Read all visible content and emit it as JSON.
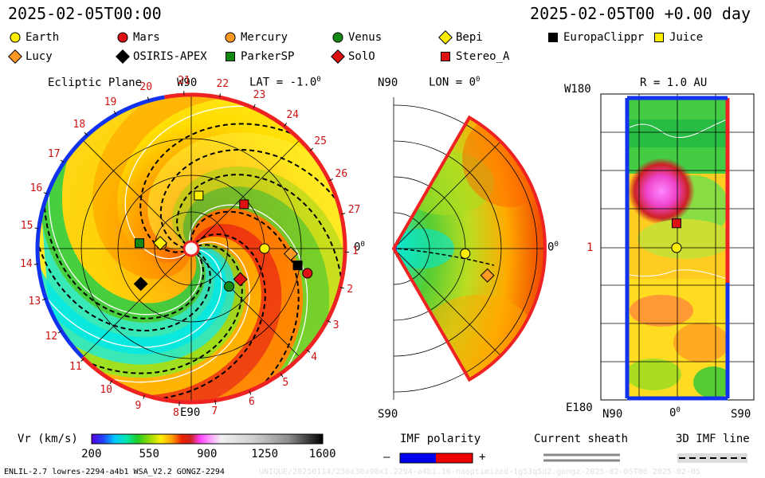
{
  "header": {
    "datetime_left": "2025-02-05T00:00",
    "datetime_right": "2025-02-05T00 +0.00 day"
  },
  "legend": [
    {
      "name": "Earth",
      "shape": "circle",
      "color": "#ffee00"
    },
    {
      "name": "Mars",
      "shape": "circle",
      "color": "#dd1111"
    },
    {
      "name": "Mercury",
      "shape": "circle",
      "color": "#ff9922"
    },
    {
      "name": "Venus",
      "shape": "circle",
      "color": "#118811"
    },
    {
      "name": "Bepi",
      "shape": "diamond",
      "color": "#ffee00"
    },
    {
      "name": "EuropaClippr",
      "shape": "square",
      "color": "#000000"
    },
    {
      "name": "Juice",
      "shape": "square",
      "color": "#ffee00"
    },
    {
      "name": "Lucy",
      "shape": "diamond",
      "color": "#ff9922"
    },
    {
      "name": "OSIRIS-APEX",
      "shape": "diamond",
      "color": "#000000"
    },
    {
      "name": "ParkerSP",
      "shape": "square",
      "color": "#118811"
    },
    {
      "name": "SolO",
      "shape": "diamond",
      "color": "#dd1111"
    },
    {
      "name": "Stereo_A",
      "shape": "square",
      "color": "#dd1111"
    }
  ],
  "ecliptic": {
    "title": "Ecliptic Plane",
    "top_label": "W90",
    "bottom_label": "E90",
    "right_label": "0",
    "lat_label": "LAT = -1.0",
    "carrington_ticks": [
      "1",
      "2",
      "3",
      "4",
      "5",
      "6",
      "7",
      "8",
      "9",
      "10",
      "11",
      "12",
      "13",
      "14",
      "15",
      "16",
      "17",
      "18",
      "19",
      "20",
      "21",
      "22",
      "23",
      "24",
      "25",
      "26",
      "27"
    ]
  },
  "meridional": {
    "top_label": "N90",
    "bottom_label": "S90",
    "lon_label": "LON = 0",
    "right_label": "0"
  },
  "map": {
    "r_label": "R = 1.0 AU",
    "top_left": "W180",
    "mid_left": "1",
    "bottom_left": "E180",
    "x_left": "N90",
    "x_mid": "0",
    "x_right": "S90"
  },
  "colorbar": {
    "label": "Vr (km/s)",
    "ticks": [
      "200",
      "550",
      "900",
      "1250",
      "1600"
    ]
  },
  "imf": {
    "title": "IMF polarity",
    "minus": "–",
    "plus": "+",
    "colors": {
      "neg": "#0000ee",
      "pos": "#ee0000"
    }
  },
  "sheath": {
    "title": "Current sheath"
  },
  "imfline": {
    "title": "3D IMF line"
  },
  "footer": {
    "left": "ENLIL-2.7 lowres-2294-a4b1 WSA_V2.2 GONGZ-2294",
    "right": "UNIQUE/20250114/256x30x90x1.2294-a4b1.16-nooptimized-1g53q5d2.gongz-2025-02-05T00    2025-02-05"
  },
  "chart_data": [
    {
      "type": "heatmap",
      "name": "ecliptic-plane",
      "quantity": "Vr (km/s)",
      "vrange": [
        200,
        1600
      ],
      "objects": [
        {
          "name": "Earth",
          "lon_deg": 0,
          "r_au": 1.0
        },
        {
          "name": "Mercury",
          "lon_deg": 172,
          "r_au": 0.41
        },
        {
          "name": "Venus",
          "lon_deg": -45,
          "r_au": 0.73
        },
        {
          "name": "Mars",
          "lon_deg": -12,
          "r_au": 1.62
        },
        {
          "name": "Bepi",
          "lon_deg": 170,
          "r_au": 0.43
        },
        {
          "name": "EuropaClippr",
          "lon_deg": -9,
          "r_au": 1.47
        },
        {
          "name": "Juice",
          "lon_deg": 82,
          "r_au": 0.73
        },
        {
          "name": "Lucy",
          "lon_deg": -3,
          "r_au": 1.36
        },
        {
          "name": "OSIRIS-APEX",
          "lon_deg": -145,
          "r_au": 0.84
        },
        {
          "name": "ParkerSP",
          "lon_deg": 174,
          "r_au": 0.71
        },
        {
          "name": "SolO",
          "lon_deg": -32,
          "r_au": 0.79
        },
        {
          "name": "Stereo_A",
          "lon_deg": 40,
          "r_au": 0.94
        }
      ]
    },
    {
      "type": "heatmap",
      "name": "meridional-plane",
      "quantity": "Vr (km/s)",
      "objects": [
        {
          "name": "Earth",
          "lat_deg": -1,
          "r_au": 1.0
        },
        {
          "name": "Lucy",
          "lat_deg": -4,
          "r_au": 1.36
        }
      ]
    },
    {
      "type": "heatmap",
      "name": "r-1au-map",
      "quantity": "Vr (km/s)",
      "objects": [
        {
          "name": "Earth",
          "lon_deg": 0,
          "lat_deg": -1
        },
        {
          "name": "Stereo_A",
          "lon_deg": 40,
          "lat_deg": -1
        }
      ]
    }
  ]
}
